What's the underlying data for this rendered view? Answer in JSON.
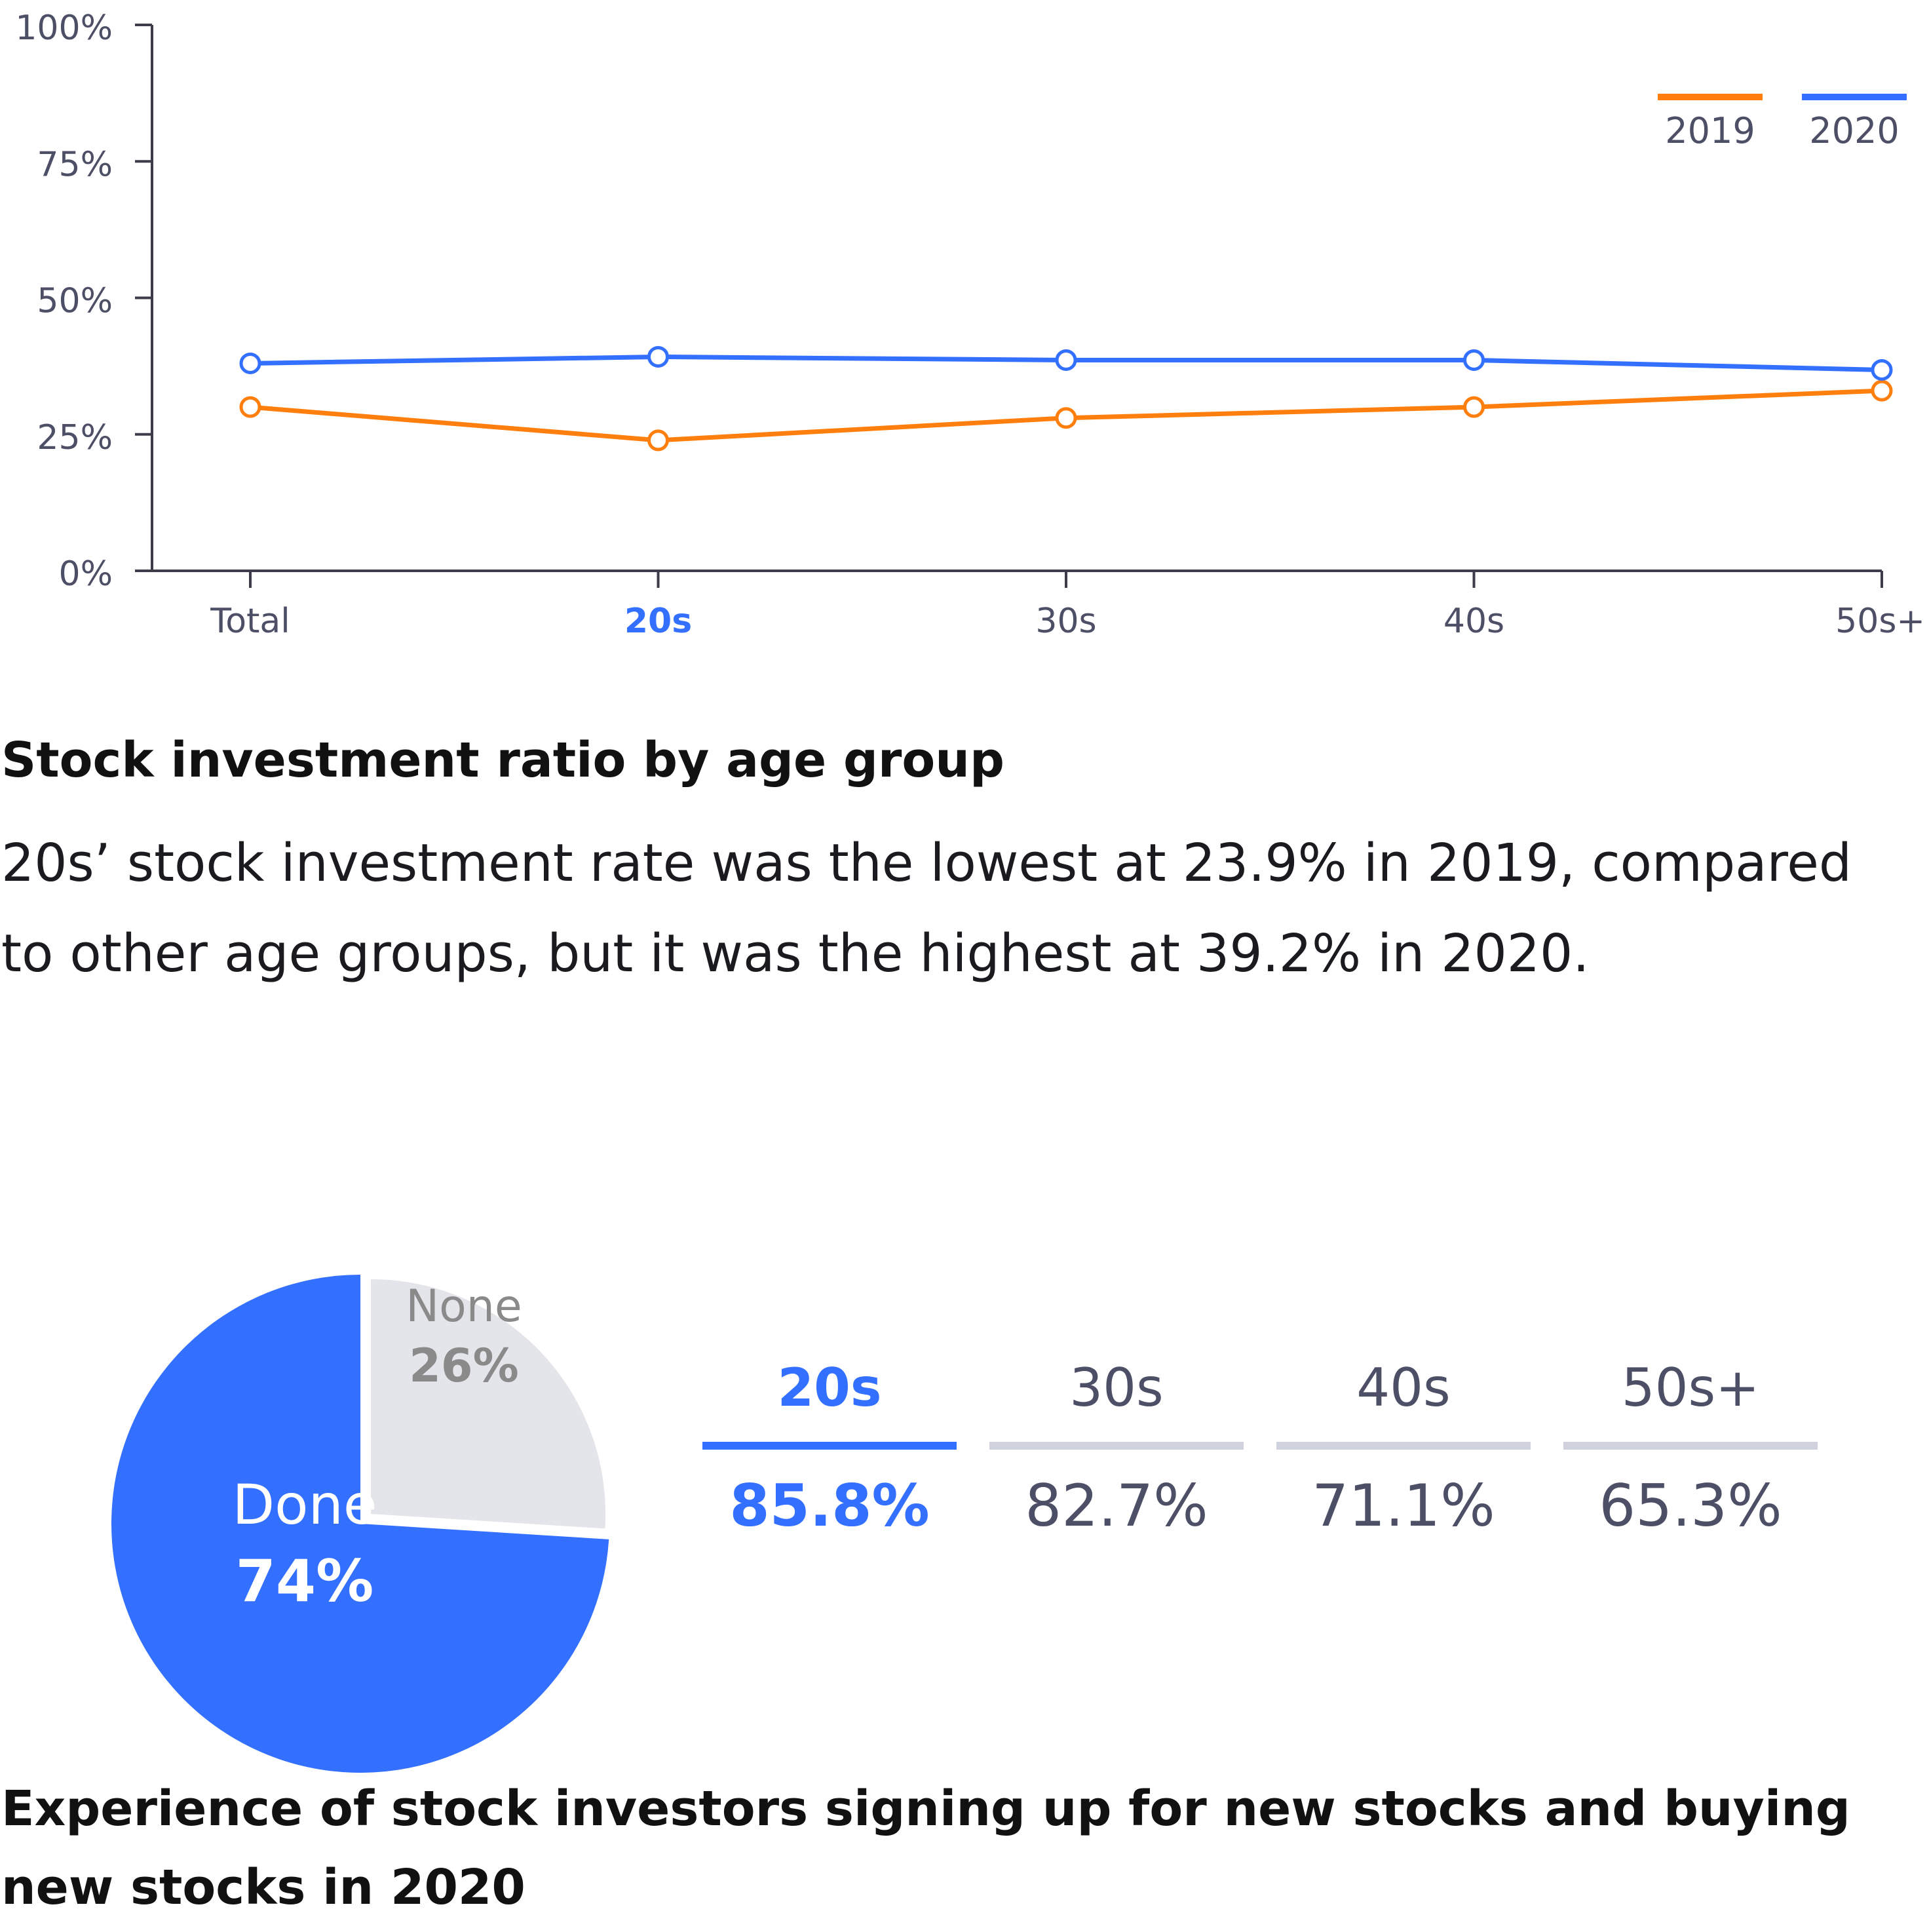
{
  "chart_data": [
    {
      "type": "line",
      "categories": [
        "Total",
        "20s",
        "30s",
        "40s",
        "50s+"
      ],
      "highlight_category": "20s",
      "series": [
        {
          "name": "2019",
          "color": "#FF7F0E",
          "values": [
            30,
            23.9,
            28,
            30,
            33
          ]
        },
        {
          "name": "2020",
          "color": "#3370FF",
          "values": [
            38,
            39.2,
            38.6,
            38.6,
            36.8
          ]
        }
      ],
      "y_ticks": [
        "100%",
        "75%",
        "50%",
        "25%",
        "0%"
      ],
      "ylim": [
        0,
        100
      ],
      "legend_position": "top-right",
      "grid": false,
      "title": "Stock investment ratio by age group",
      "description": "20s’ stock investment rate was the lowest at 23.9% in 2019, compared to other age groups, but it was the highest at 39.2% in 2020."
    },
    {
      "type": "pie",
      "slices": [
        {
          "name": "Done",
          "value": 74,
          "label": "74%",
          "color": "#3370FF"
        },
        {
          "name": "None",
          "value": 26,
          "label": "26%",
          "color": "#E4E5EA"
        }
      ],
      "title": "Experience of stock investors signing up for new stocks and buying new stocks in 2020"
    },
    {
      "type": "table",
      "columns": [
        "20s",
        "30s",
        "40s",
        "50s+"
      ],
      "values": [
        "85.8%",
        "82.7%",
        "71.1%",
        "65.3%"
      ],
      "highlight": "20s"
    }
  ]
}
